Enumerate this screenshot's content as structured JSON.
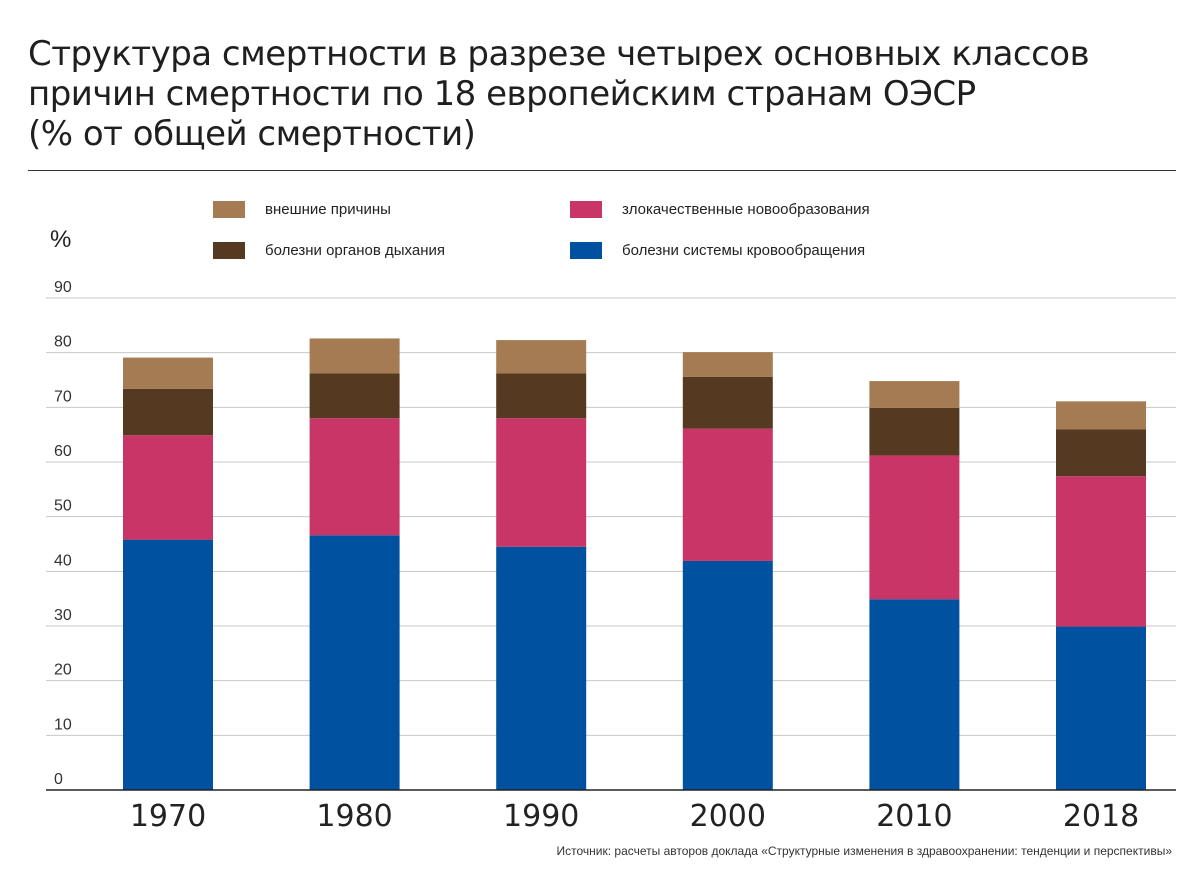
{
  "title_lines": [
    "Структура смертности в разрезе четырех основных классов",
    "причин смертности по 18 европейским странам ОЭСР",
    "(% от общей смертности)"
  ],
  "source": "Источник: расчеты авторов доклада «Структурные изменения в здравоохранении: тенденции и перспективы»",
  "chart_data": {
    "type": "bar",
    "stacked": true,
    "title": "Структура смертности в разрезе четырех основных классов причин смертности по 18 европейским странам ОЭСР (% от общей смертности)",
    "ylabel": "%",
    "xlabel": "",
    "ylim": [
      0,
      90
    ],
    "yticks": [
      0,
      10,
      20,
      30,
      40,
      50,
      60,
      70,
      80,
      90
    ],
    "grid": true,
    "legend_position": "top",
    "categories": [
      "1970",
      "1980",
      "1990",
      "2000",
      "2010",
      "2018"
    ],
    "series": [
      {
        "name": "болезни системы кровообращения",
        "color": "#0052a0",
        "values": [
          45.8,
          46.6,
          44.5,
          41.9,
          34.9,
          29.9
        ]
      },
      {
        "name": "злокачественные новообразования",
        "color": "#c93566",
        "values": [
          19.1,
          21.4,
          23.5,
          24.2,
          26.3,
          27.5
        ]
      },
      {
        "name": "болезни органов дыхания",
        "color": "#553920",
        "values": [
          8.5,
          8.2,
          8.2,
          9.5,
          8.7,
          8.6
        ]
      },
      {
        "name": "внешние причины",
        "color": "#a57b53",
        "values": [
          5.7,
          6.4,
          6.1,
          4.5,
          4.9,
          5.1
        ]
      }
    ]
  }
}
